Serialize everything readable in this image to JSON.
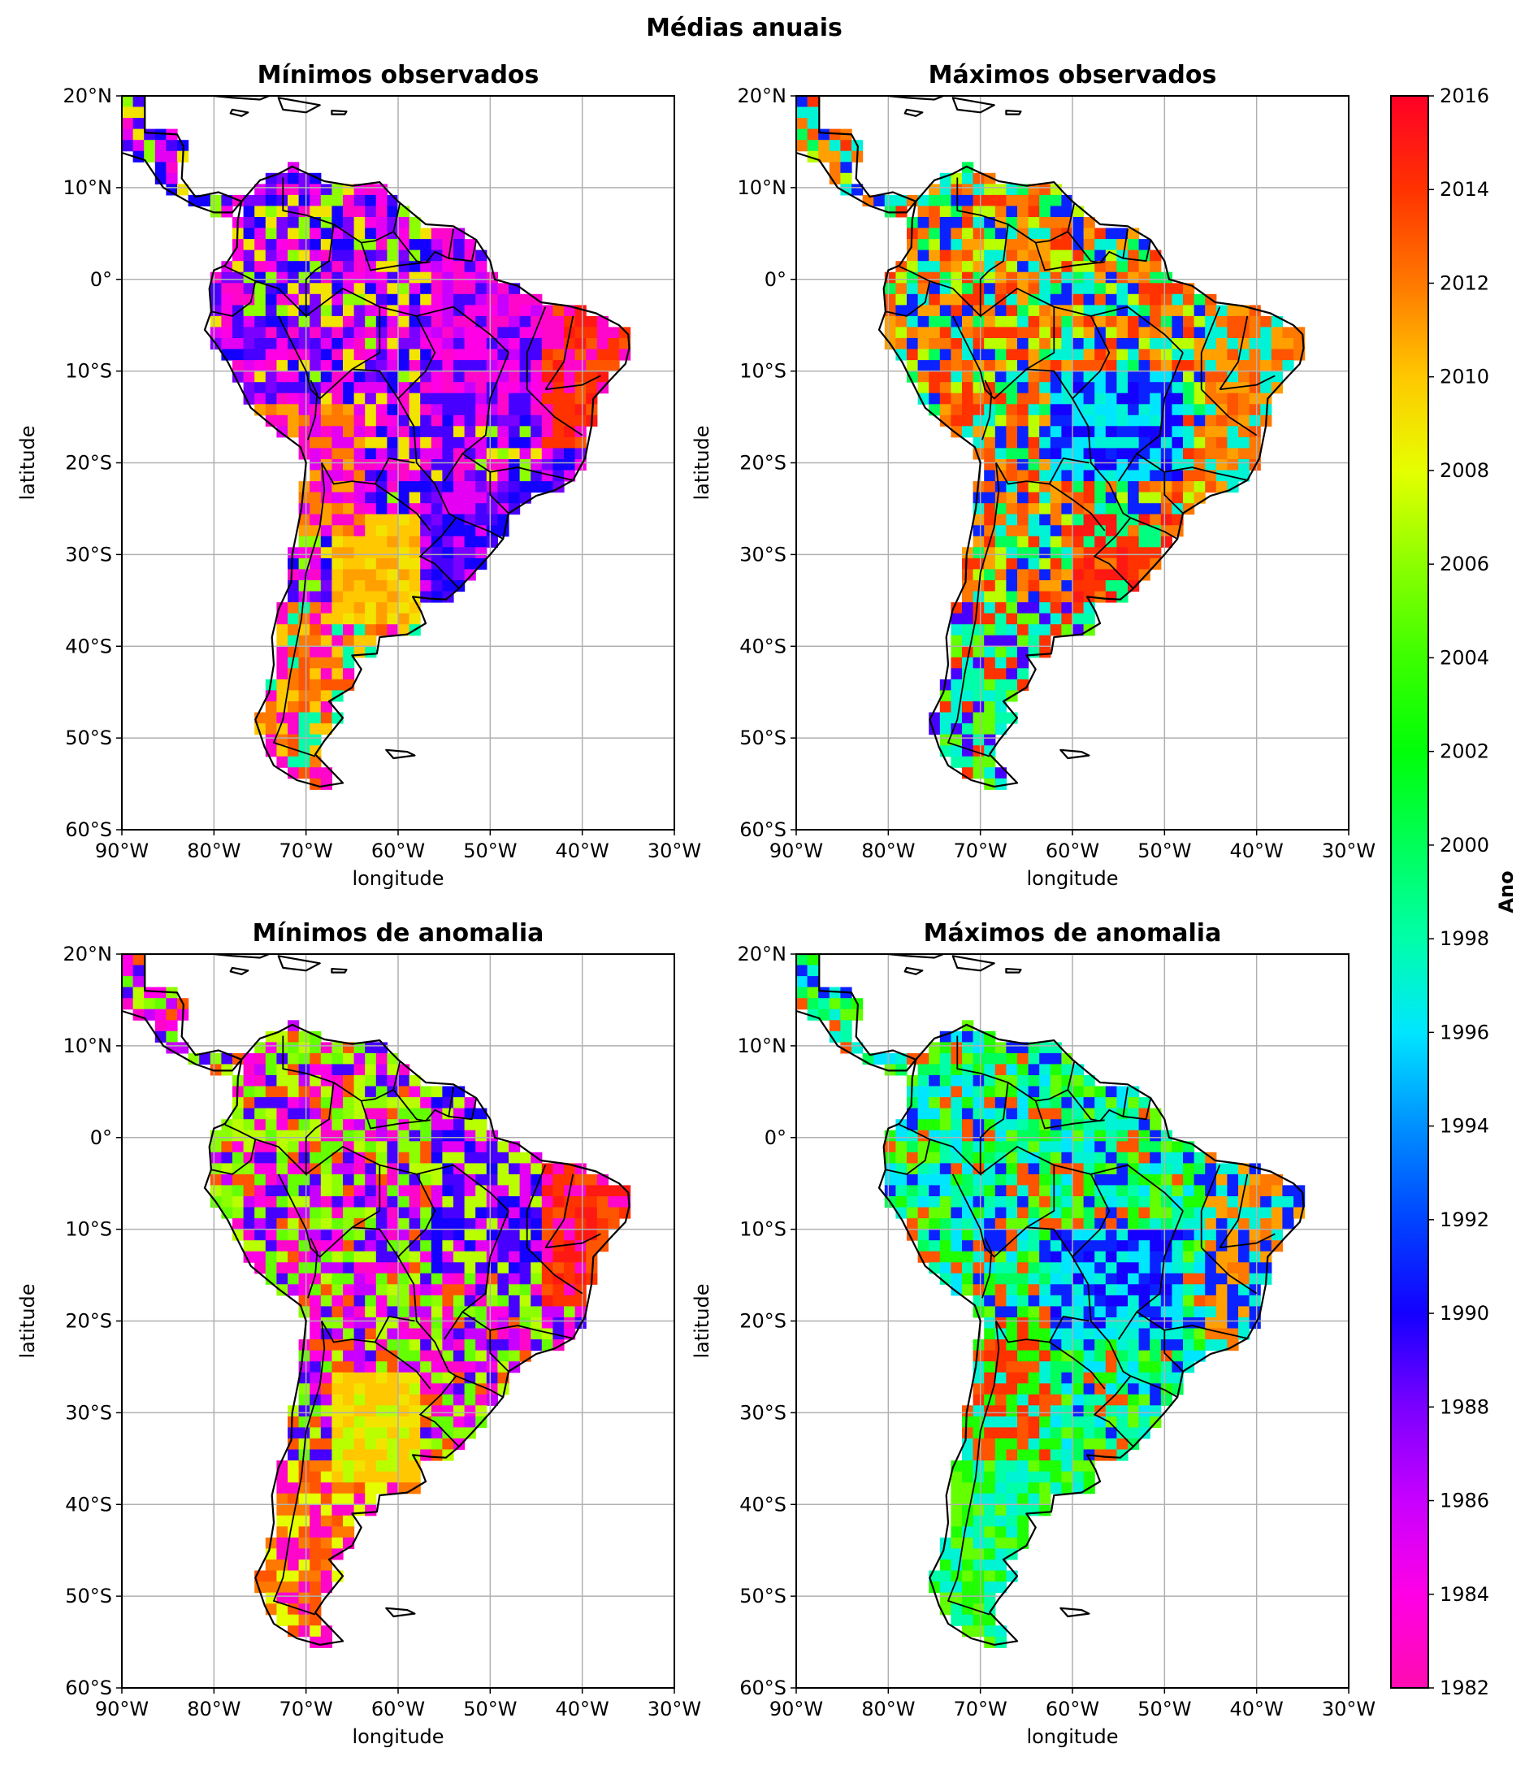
{
  "figure": {
    "suptitle": "Médias anuais"
  },
  "panels": [
    {
      "id": "min-observed",
      "title": "Mínimos observados"
    },
    {
      "id": "max-observed",
      "title": "Máximos observados"
    },
    {
      "id": "min-anomaly",
      "title": "Mínimos de anomalia"
    },
    {
      "id": "max-anomaly",
      "title": "Máximos de anomalia"
    }
  ],
  "axes": {
    "xlabel": "longitude",
    "ylabel": "latitude",
    "lon_range": [
      -90,
      -30
    ],
    "lat_range": [
      -60,
      20
    ],
    "lon_ticks": [
      "90°W",
      "80°W",
      "70°W",
      "60°W",
      "50°W",
      "40°W",
      "30°W"
    ],
    "lat_ticks": [
      "20°N",
      "10°N",
      "0°",
      "10°S",
      "20°S",
      "30°S",
      "40°S",
      "50°S",
      "60°S"
    ],
    "grid": true
  },
  "colorbar": {
    "label": "Ano",
    "min": 1982,
    "max": 2016,
    "ticks": [
      "1982",
      "1984",
      "1986",
      "1988",
      "1990",
      "1992",
      "1994",
      "1996",
      "1998",
      "2000",
      "2002",
      "2004",
      "2006",
      "2008",
      "2010",
      "2012",
      "2014",
      "2016"
    ],
    "colormap": "gist_rainbow_r",
    "stops": [
      {
        "value": 1982,
        "color": "#ff0cb0"
      },
      {
        "value": 1984,
        "color": "#ff00e6"
      },
      {
        "value": 1986,
        "color": "#c800ff"
      },
      {
        "value": 1988,
        "color": "#7a00ff"
      },
      {
        "value": 1990,
        "color": "#1400ff"
      },
      {
        "value": 1992,
        "color": "#0044ff"
      },
      {
        "value": 1994,
        "color": "#0090ff"
      },
      {
        "value": 1996,
        "color": "#00e6ff"
      },
      {
        "value": 1998,
        "color": "#00ffa8"
      },
      {
        "value": 2000,
        "color": "#00ff58"
      },
      {
        "value": 2002,
        "color": "#00ff08"
      },
      {
        "value": 2004,
        "color": "#3cff00"
      },
      {
        "value": 2006,
        "color": "#8cff00"
      },
      {
        "value": 2008,
        "color": "#e6ff00"
      },
      {
        "value": 2010,
        "color": "#ffc800"
      },
      {
        "value": 2012,
        "color": "#ff7800"
      },
      {
        "value": 2014,
        "color": "#ff3200"
      },
      {
        "value": 2016,
        "color": "#ff0026"
      }
    ]
  }
}
